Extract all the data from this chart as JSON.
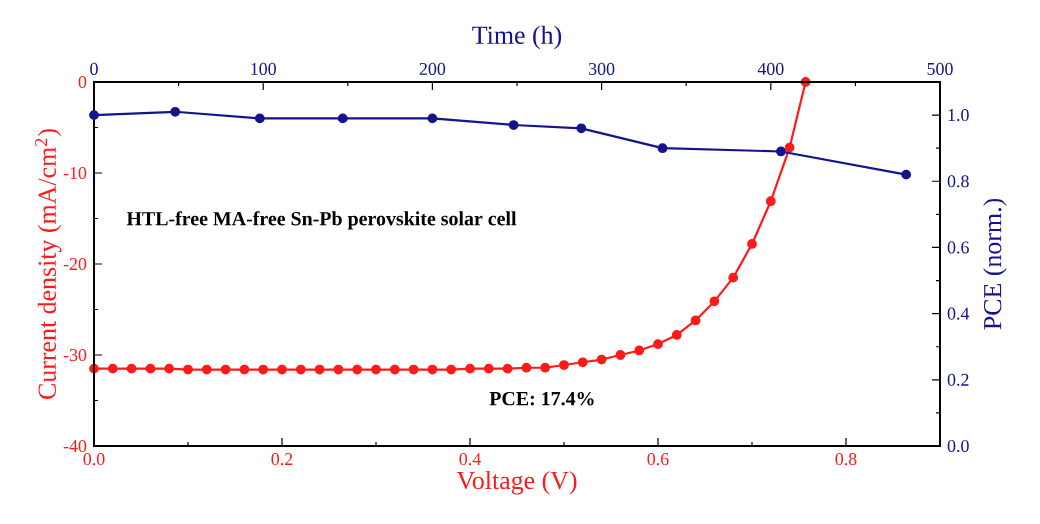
{
  "chart_data": [
    {
      "type": "line",
      "xlabel": "Voltage (V)",
      "ylabel": "Current density (mA/cm$^{2}$)",
      "xlim": [
        0,
        0.9
      ],
      "xticks": [
        {
          "value": 0,
          "label": "0.0"
        },
        {
          "value": 0.2,
          "label": "0.2"
        },
        {
          "value": 0.4,
          "label": "0.4"
        },
        {
          "value": 0.6,
          "label": "0.6"
        },
        {
          "value": 0.8,
          "label": "0.8"
        }
      ],
      "ylim": [
        -40,
        0
      ],
      "yticks": [
        -40,
        -30,
        -20,
        -10,
        0
      ],
      "marker": "circle",
      "line_style": "solid",
      "annotations": [
        "HTL-free MA-free Sn-Pb perovskite solar cell",
        "PCE: 17.4%"
      ],
      "color": "#ff1a1a",
      "x": [
        0,
        0.02,
        0.04,
        0.06,
        0.08,
        0.1,
        0.12,
        0.14,
        0.16,
        0.18,
        0.2,
        0.22,
        0.24,
        0.26,
        0.28,
        0.3,
        0.32,
        0.34,
        0.36,
        0.38,
        0.4,
        0.42,
        0.44,
        0.46,
        0.48,
        0.5,
        0.52,
        0.54,
        0.56,
        0.58,
        0.6,
        0.62,
        0.64,
        0.66,
        0.68,
        0.7,
        0.72,
        0.74,
        0.757
      ],
      "values": [
        -31.5,
        -31.5,
        -31.5,
        -31.5,
        -31.5,
        -31.6,
        -31.6,
        -31.6,
        -31.6,
        -31.6,
        -31.6,
        -31.6,
        -31.6,
        -31.6,
        -31.6,
        -31.6,
        -31.6,
        -31.6,
        -31.6,
        -31.6,
        -31.5,
        -31.5,
        -31.5,
        -31.4,
        -31.4,
        -31.1,
        -30.8,
        -30.5,
        -30.0,
        -29.5,
        -28.8,
        -27.8,
        -26.2,
        -24.1,
        -21.5,
        -17.8,
        -13.1,
        -7.2,
        0
      ]
    },
    {
      "type": "line",
      "xlabel": "Time (h)",
      "ylabel": "PCE (norm.)",
      "xlim": [
        0,
        500
      ],
      "xticks": [
        0,
        100,
        200,
        300,
        400,
        500
      ],
      "ylim": [
        0,
        1.1
      ],
      "yticks": [
        {
          "value": 0,
          "label": "0.0"
        },
        {
          "value": 0.2,
          "label": "0.2"
        },
        {
          "value": 0.4,
          "label": "0.4"
        },
        {
          "value": 0.6,
          "label": "0.6"
        },
        {
          "value": 0.8,
          "label": "0.8"
        },
        {
          "value": 1.0,
          "label": "1.0"
        }
      ],
      "marker": "circle",
      "line_style": "solid",
      "color": "#14148c",
      "x": [
        0,
        48,
        98,
        147,
        200,
        248,
        288,
        336,
        406,
        480
      ],
      "values": [
        1.0,
        1.01,
        0.99,
        0.99,
        0.99,
        0.97,
        0.96,
        0.9,
        0.89,
        0.82
      ]
    }
  ]
}
